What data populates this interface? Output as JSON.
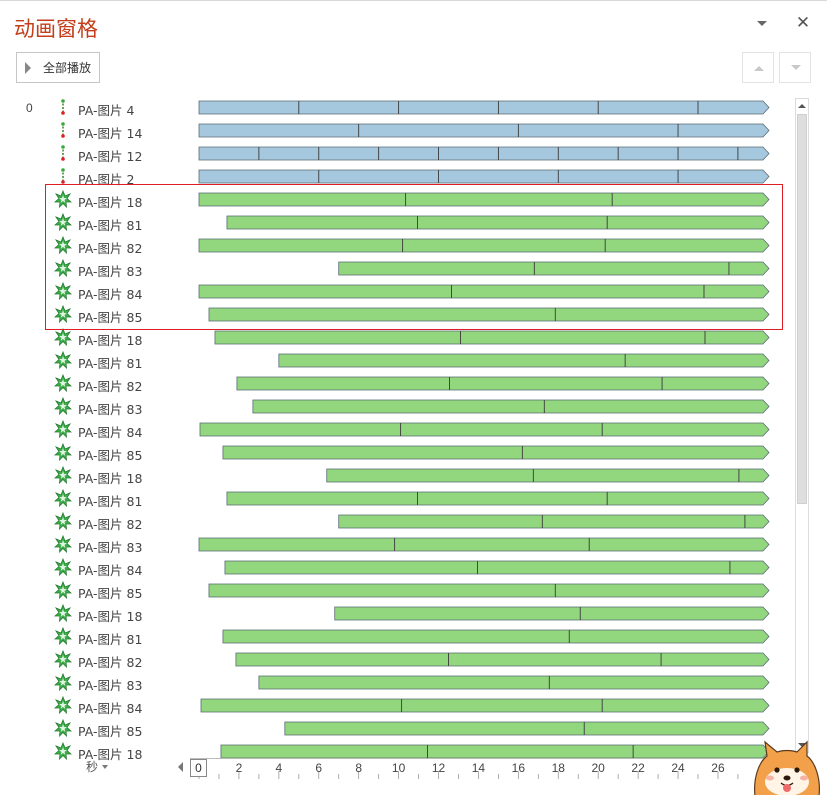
{
  "pane": {
    "title": "动画窗格",
    "play_all_label": "全部播放",
    "close_glyph": "✕",
    "timeline_unit": "秒"
  },
  "colors": {
    "title": "#c43e1c",
    "path_bar": "#a6c8de",
    "emphasis_bar": "#92d77e",
    "bar_border": "#5a6b75",
    "highlight_box": "#e01d22"
  },
  "timeline_scale": {
    "start": 0,
    "end": 28,
    "labels": [
      "0",
      "2",
      "4",
      "6",
      "8",
      "10",
      "12",
      "14",
      "16",
      "18",
      "20",
      "22",
      "24",
      "26"
    ]
  },
  "highlight_rows": [
    4,
    9
  ],
  "rows": [
    {
      "start": "0",
      "icon": "motion-path-icon",
      "name": "PA-图片 4",
      "type": "path",
      "from": 0,
      "ticks": [
        5,
        10,
        15,
        20,
        25
      ]
    },
    {
      "start": "",
      "icon": "motion-path-icon",
      "name": "PA-图片 14",
      "type": "path",
      "from": 0,
      "ticks": [
        8,
        16,
        24
      ]
    },
    {
      "start": "",
      "icon": "motion-path-icon",
      "name": "PA-图片 12",
      "type": "path",
      "from": 0,
      "ticks": [
        3,
        6,
        9,
        12,
        15,
        18,
        21,
        24,
        27
      ]
    },
    {
      "start": "",
      "icon": "motion-path-icon",
      "name": "PA-图片 2",
      "type": "path",
      "from": 0,
      "ticks": [
        6,
        12,
        18,
        24
      ]
    },
    {
      "start": "",
      "icon": "emphasis-star-icon",
      "name": "PA-图片 18",
      "type": "emphasis",
      "from": 0,
      "ticks": [
        10.35,
        20.7
      ]
    },
    {
      "start": "",
      "icon": "emphasis-star-icon",
      "name": "PA-图片 81",
      "type": "emphasis",
      "from": 1.4,
      "ticks": [
        10.95,
        20.45
      ]
    },
    {
      "start": "",
      "icon": "emphasis-star-icon",
      "name": "PA-图片 82",
      "type": "emphasis",
      "from": 0,
      "ticks": [
        10.2,
        20.35
      ]
    },
    {
      "start": "",
      "icon": "emphasis-star-icon",
      "name": "PA-图片 83",
      "type": "emphasis",
      "from": 7,
      "ticks": [
        16.8,
        26.55
      ]
    },
    {
      "start": "",
      "icon": "emphasis-star-icon",
      "name": "PA-图片 84",
      "type": "emphasis",
      "from": 0,
      "ticks": [
        12.65,
        25.3
      ]
    },
    {
      "start": "",
      "icon": "emphasis-star-icon",
      "name": "PA-图片 85",
      "type": "emphasis",
      "from": 0.5,
      "ticks": [
        17.85
      ]
    },
    {
      "start": "",
      "icon": "emphasis-star-icon",
      "name": "PA-图片 18",
      "type": "emphasis",
      "from": 0.8,
      "ticks": [
        13.1,
        25.35
      ]
    },
    {
      "start": "",
      "icon": "emphasis-star-icon",
      "name": "PA-图片 81",
      "type": "emphasis",
      "from": 4,
      "ticks": [
        21.35
      ]
    },
    {
      "start": "",
      "icon": "emphasis-star-icon",
      "name": "PA-图片 82",
      "type": "emphasis",
      "from": 1.9,
      "ticks": [
        12.55,
        23.2
      ]
    },
    {
      "start": "",
      "icon": "emphasis-star-icon",
      "name": "PA-图片 83",
      "type": "emphasis",
      "from": 2.7,
      "ticks": [
        17.3
      ]
    },
    {
      "start": "",
      "icon": "emphasis-star-icon",
      "name": "PA-图片 84",
      "type": "emphasis",
      "from": 0.05,
      "ticks": [
        10.1,
        20.2
      ]
    },
    {
      "start": "",
      "icon": "emphasis-star-icon",
      "name": "PA-图片 85",
      "type": "emphasis",
      "from": 1.2,
      "ticks": [
        16.2
      ]
    },
    {
      "start": "",
      "icon": "emphasis-star-icon",
      "name": "PA-图片 18",
      "type": "emphasis",
      "from": 6.4,
      "ticks": [
        16.75,
        27.05
      ]
    },
    {
      "start": "",
      "icon": "emphasis-star-icon",
      "name": "PA-图片 81",
      "type": "emphasis",
      "from": 1.4,
      "ticks": [
        10.95,
        20.45
      ]
    },
    {
      "start": "",
      "icon": "emphasis-star-icon",
      "name": "PA-图片 82",
      "type": "emphasis",
      "from": 7,
      "ticks": [
        17.2,
        27.35
      ]
    },
    {
      "start": "",
      "icon": "emphasis-star-icon",
      "name": "PA-图片 83",
      "type": "emphasis",
      "from": 0,
      "ticks": [
        9.8,
        19.55
      ]
    },
    {
      "start": "",
      "icon": "emphasis-star-icon",
      "name": "PA-图片 84",
      "type": "emphasis",
      "from": 1.3,
      "ticks": [
        13.95,
        26.6
      ]
    },
    {
      "start": "",
      "icon": "emphasis-star-icon",
      "name": "PA-图片 85",
      "type": "emphasis",
      "from": 0.5,
      "ticks": [
        17.85
      ]
    },
    {
      "start": "",
      "icon": "emphasis-star-icon",
      "name": "PA-图片 18",
      "type": "emphasis",
      "from": 6.8,
      "ticks": [
        19.1
      ]
    },
    {
      "start": "",
      "icon": "emphasis-star-icon",
      "name": "PA-图片 81",
      "type": "emphasis",
      "from": 1.2,
      "ticks": [
        18.55
      ]
    },
    {
      "start": "",
      "icon": "emphasis-star-icon",
      "name": "PA-图片 82",
      "type": "emphasis",
      "from": 1.85,
      "ticks": [
        12.5,
        23.15
      ]
    },
    {
      "start": "",
      "icon": "emphasis-star-icon",
      "name": "PA-图片 83",
      "type": "emphasis",
      "from": 3,
      "ticks": [
        17.55
      ]
    },
    {
      "start": "",
      "icon": "emphasis-star-icon",
      "name": "PA-图片 84",
      "type": "emphasis",
      "from": 0.1,
      "ticks": [
        10.15,
        20.2
      ]
    },
    {
      "start": "",
      "icon": "emphasis-star-icon",
      "name": "PA-图片 85",
      "type": "emphasis",
      "from": 4.3,
      "ticks": [
        19.3
      ]
    },
    {
      "start": "",
      "icon": "emphasis-star-icon",
      "name": "PA-图片 18",
      "type": "emphasis",
      "from": 1.1,
      "ticks": [
        11.45,
        21.75
      ]
    }
  ]
}
